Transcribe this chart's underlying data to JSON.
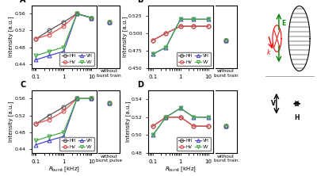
{
  "x_vals": [
    0.1,
    0.3,
    1.0,
    3.0,
    10.0
  ],
  "panels": {
    "A": {
      "label": "A",
      "without_label": "without\nburst train",
      "lines": {
        "HH": {
          "color": "#555555",
          "marker": "o",
          "values": [
            0.5,
            0.52,
            0.54,
            0.56,
            0.55
          ],
          "without": 0.54
        },
        "HV": {
          "color": "#e05050",
          "marker": "o",
          "values": [
            0.5,
            0.51,
            0.53,
            0.56,
            0.55
          ],
          "without": 0.54
        },
        "VH": {
          "color": "#4444cc",
          "marker": "^",
          "values": [
            0.45,
            0.46,
            0.47,
            0.56,
            0.55
          ],
          "without": 0.54
        },
        "VV": {
          "color": "#44aa44",
          "marker": "v",
          "values": [
            0.46,
            0.47,
            0.48,
            0.56,
            0.55
          ],
          "without": 0.54
        }
      }
    },
    "B": {
      "label": "B",
      "without_label": "without\nburst train",
      "lines": {
        "HH": {
          "color": "#555555",
          "marker": "o",
          "values": [
            0.49,
            0.5,
            0.51,
            0.51,
            0.51
          ],
          "without": 0.49
        },
        "HV": {
          "color": "#e05050",
          "marker": "o",
          "values": [
            0.49,
            0.5,
            0.51,
            0.51,
            0.51
          ],
          "without": 0.49
        },
        "VH": {
          "color": "#4444cc",
          "marker": "^",
          "values": [
            0.47,
            0.48,
            0.52,
            0.52,
            0.52
          ],
          "without": 0.49
        },
        "VV": {
          "color": "#44aa44",
          "marker": "v",
          "values": [
            0.47,
            0.48,
            0.52,
            0.52,
            0.52
          ],
          "without": 0.49
        }
      }
    },
    "C": {
      "label": "C",
      "without_label": "without\nburst pulse",
      "lines": {
        "HH": {
          "color": "#555555",
          "marker": "o",
          "values": [
            0.5,
            0.52,
            0.54,
            0.56,
            0.56
          ],
          "without": 0.55
        },
        "HV": {
          "color": "#e05050",
          "marker": "o",
          "values": [
            0.5,
            0.51,
            0.53,
            0.56,
            0.56
          ],
          "without": 0.55
        },
        "VH": {
          "color": "#4444cc",
          "marker": "^",
          "values": [
            0.45,
            0.46,
            0.47,
            0.56,
            0.56
          ],
          "without": 0.55
        },
        "VV": {
          "color": "#44aa44",
          "marker": "v",
          "values": [
            0.46,
            0.47,
            0.48,
            0.56,
            0.56
          ],
          "without": 0.55
        }
      }
    },
    "D": {
      "label": "D",
      "without_label": "without\nburst train",
      "lines": {
        "HH": {
          "color": "#555555",
          "marker": "o",
          "values": [
            0.51,
            0.52,
            0.52,
            0.51,
            0.51
          ],
          "without": 0.51
        },
        "HV": {
          "color": "#e05050",
          "marker": "o",
          "values": [
            0.51,
            0.52,
            0.52,
            0.51,
            0.51
          ],
          "without": 0.51
        },
        "VH": {
          "color": "#4444cc",
          "marker": "^",
          "values": [
            0.5,
            0.52,
            0.53,
            0.52,
            0.52
          ],
          "without": 0.51
        },
        "VV": {
          "color": "#44aa44",
          "marker": "v",
          "values": [
            0.5,
            0.52,
            0.53,
            0.52,
            0.52
          ],
          "without": 0.51
        }
      }
    }
  },
  "legend_order": [
    "HH",
    "HV",
    "VH",
    "VV"
  ],
  "background": "#ffffff"
}
